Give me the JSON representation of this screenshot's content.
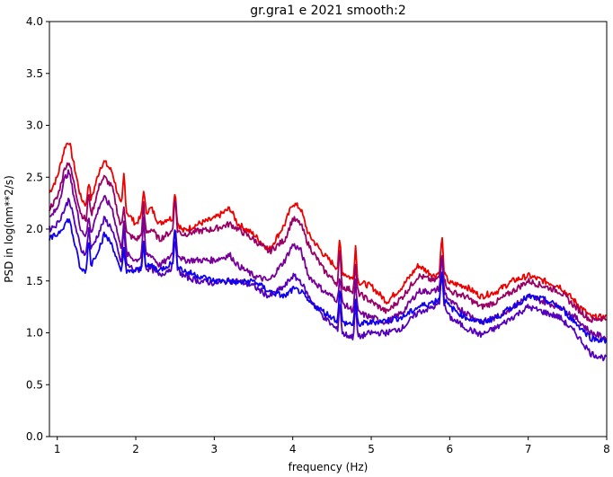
{
  "chart_data": {
    "type": "line",
    "title": "gr.gra1 e 2021 smooth:2",
    "xlabel": "frequency (Hz)",
    "ylabel": "PSD in log(nm**2/s)",
    "xlim": [
      0.9,
      8.0
    ],
    "ylim": [
      0.0,
      4.0
    ],
    "xticks": [
      1,
      2,
      3,
      4,
      5,
      6,
      7,
      8
    ],
    "yticks": [
      0.0,
      0.5,
      1.0,
      1.5,
      2.0,
      2.5,
      3.0,
      3.5,
      4.0
    ],
    "xtick_labels": [
      "1",
      "2",
      "3",
      "4",
      "5",
      "6",
      "7",
      "8"
    ],
    "ytick_labels": [
      "0.0",
      "0.5",
      "1.0",
      "1.5",
      "2.0",
      "2.5",
      "3.0",
      "3.5",
      "4.0"
    ],
    "grid": false,
    "series": [
      {
        "color": "#ee0000",
        "x": [
          0.9,
          1.0,
          1.1,
          1.15,
          1.3,
          1.4,
          1.55,
          1.6,
          1.7,
          1.8,
          1.9,
          2.0,
          2.1,
          2.2,
          2.3,
          2.4,
          2.5,
          2.6,
          2.8,
          3.0,
          3.2,
          3.3,
          3.5,
          3.7,
          3.9,
          4.0,
          4.1,
          4.2,
          4.4,
          4.6,
          4.8,
          5.0,
          5.2,
          5.4,
          5.6,
          5.8,
          5.9,
          6.0,
          6.2,
          6.4,
          6.6,
          6.8,
          7.0,
          7.2,
          7.4,
          7.6,
          7.8,
          8.0
        ],
        "y": [
          2.35,
          2.5,
          2.8,
          2.85,
          2.3,
          2.2,
          2.6,
          2.65,
          2.55,
          2.25,
          2.15,
          2.05,
          2.15,
          2.2,
          2.05,
          2.1,
          2.1,
          1.98,
          2.05,
          2.1,
          2.2,
          2.05,
          1.95,
          1.8,
          2.05,
          2.25,
          2.2,
          1.95,
          1.75,
          1.6,
          1.5,
          1.45,
          1.3,
          1.45,
          1.65,
          1.55,
          1.6,
          1.48,
          1.45,
          1.35,
          1.4,
          1.5,
          1.55,
          1.5,
          1.45,
          1.3,
          1.15,
          1.15
        ]
      },
      {
        "color": "#990066",
        "x": [
          0.9,
          1.0,
          1.1,
          1.15,
          1.3,
          1.4,
          1.55,
          1.6,
          1.7,
          1.8,
          1.9,
          2.0,
          2.1,
          2.2,
          2.3,
          2.4,
          2.5,
          2.6,
          2.8,
          3.0,
          3.2,
          3.3,
          3.5,
          3.7,
          3.9,
          4.0,
          4.1,
          4.2,
          4.4,
          4.6,
          4.8,
          5.0,
          5.2,
          5.4,
          5.6,
          5.8,
          5.9,
          6.0,
          6.2,
          6.4,
          6.6,
          6.8,
          7.0,
          7.2,
          7.4,
          7.6,
          7.8,
          8.0
        ],
        "y": [
          2.2,
          2.3,
          2.6,
          2.65,
          2.15,
          2.05,
          2.45,
          2.5,
          2.4,
          2.05,
          1.95,
          1.9,
          1.95,
          2.0,
          1.9,
          1.95,
          2.0,
          1.95,
          1.98,
          2.0,
          2.05,
          2.0,
          1.9,
          1.78,
          1.9,
          2.1,
          2.05,
          1.85,
          1.6,
          1.45,
          1.4,
          1.3,
          1.2,
          1.35,
          1.55,
          1.5,
          1.55,
          1.4,
          1.35,
          1.25,
          1.3,
          1.4,
          1.5,
          1.45,
          1.4,
          1.25,
          1.12,
          1.15
        ]
      },
      {
        "color": "#770099",
        "x": [
          0.9,
          1.0,
          1.1,
          1.15,
          1.3,
          1.4,
          1.55,
          1.6,
          1.7,
          1.8,
          1.9,
          2.0,
          2.1,
          2.2,
          2.3,
          2.4,
          2.5,
          2.6,
          2.8,
          3.0,
          3.2,
          3.3,
          3.5,
          3.7,
          3.9,
          4.0,
          4.1,
          4.2,
          4.4,
          4.6,
          4.8,
          5.0,
          5.2,
          5.4,
          5.6,
          5.8,
          5.9,
          6.0,
          6.2,
          6.4,
          6.6,
          6.8,
          7.0,
          7.2,
          7.4,
          7.6,
          7.8,
          8.0
        ],
        "y": [
          2.1,
          2.2,
          2.5,
          2.55,
          2.0,
          1.9,
          2.25,
          2.3,
          2.2,
          1.85,
          1.75,
          1.7,
          1.75,
          1.75,
          1.65,
          1.7,
          1.8,
          1.7,
          1.7,
          1.7,
          1.75,
          1.65,
          1.55,
          1.5,
          1.7,
          1.85,
          1.8,
          1.55,
          1.4,
          1.3,
          1.2,
          1.15,
          1.1,
          1.2,
          1.4,
          1.4,
          1.45,
          1.3,
          1.2,
          1.1,
          1.15,
          1.25,
          1.35,
          1.3,
          1.25,
          1.15,
          1.0,
          0.95
        ]
      },
      {
        "color": "#5500bb",
        "x": [
          0.9,
          1.0,
          1.1,
          1.15,
          1.3,
          1.4,
          1.55,
          1.6,
          1.7,
          1.8,
          1.9,
          2.0,
          2.1,
          2.2,
          2.3,
          2.4,
          2.5,
          2.6,
          2.8,
          3.0,
          3.2,
          3.3,
          3.5,
          3.7,
          3.9,
          4.0,
          4.1,
          4.2,
          4.4,
          4.6,
          4.8,
          5.0,
          5.2,
          5.4,
          5.6,
          5.8,
          5.9,
          6.0,
          6.2,
          6.4,
          6.6,
          6.8,
          7.0,
          7.2,
          7.4,
          7.6,
          7.8,
          8.0
        ],
        "y": [
          2.0,
          2.05,
          2.2,
          2.3,
          1.8,
          1.75,
          2.0,
          2.1,
          2.0,
          1.7,
          1.65,
          1.6,
          1.62,
          1.62,
          1.55,
          1.6,
          1.65,
          1.55,
          1.5,
          1.48,
          1.5,
          1.5,
          1.45,
          1.35,
          1.45,
          1.55,
          1.5,
          1.35,
          1.15,
          1.0,
          0.95,
          1.0,
          1.0,
          1.05,
          1.2,
          1.25,
          1.3,
          1.15,
          1.05,
          0.98,
          1.05,
          1.15,
          1.25,
          1.2,
          1.15,
          1.0,
          0.8,
          0.75
        ]
      },
      {
        "color": "#1100ee",
        "x": [
          0.9,
          1.0,
          1.1,
          1.15,
          1.3,
          1.4,
          1.55,
          1.6,
          1.7,
          1.8,
          1.9,
          2.0,
          2.1,
          2.2,
          2.3,
          2.4,
          2.5,
          2.6,
          2.8,
          3.0,
          3.2,
          3.3,
          3.5,
          3.7,
          3.9,
          4.0,
          4.1,
          4.2,
          4.4,
          4.6,
          4.8,
          5.0,
          5.2,
          5.4,
          5.6,
          5.8,
          5.9,
          6.0,
          6.2,
          6.4,
          6.6,
          6.8,
          7.0,
          7.2,
          7.4,
          7.6,
          7.8,
          8.0
        ],
        "y": [
          1.9,
          1.95,
          2.05,
          2.1,
          1.6,
          1.6,
          1.85,
          1.95,
          1.85,
          1.6,
          1.58,
          1.6,
          1.62,
          1.65,
          1.6,
          1.65,
          1.68,
          1.6,
          1.55,
          1.5,
          1.5,
          1.48,
          1.5,
          1.4,
          1.35,
          1.42,
          1.4,
          1.3,
          1.2,
          1.1,
          1.08,
          1.1,
          1.12,
          1.15,
          1.25,
          1.3,
          1.35,
          1.25,
          1.15,
          1.1,
          1.15,
          1.25,
          1.35,
          1.32,
          1.25,
          1.1,
          0.95,
          0.92
        ]
      }
    ],
    "spikes": [
      1.4,
      1.85,
      2.1,
      2.5,
      4.6,
      4.8,
      5.9
    ]
  }
}
